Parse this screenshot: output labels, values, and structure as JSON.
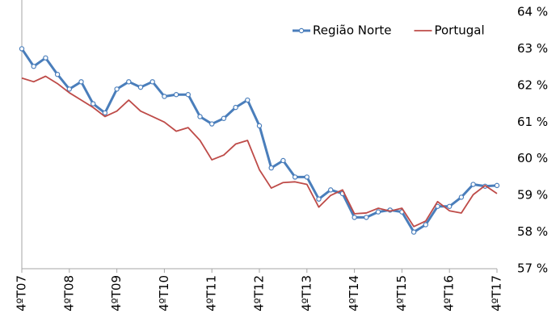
{
  "chart_data": {
    "type": "line",
    "categories": [
      "4ºT07",
      null,
      null,
      null,
      "4ºT08",
      null,
      null,
      null,
      "4ºT09",
      null,
      null,
      null,
      "4ºT10",
      null,
      null,
      null,
      "4ºT11",
      null,
      null,
      null,
      "4ºT12",
      null,
      null,
      null,
      "4ºT13",
      null,
      null,
      null,
      "4ºT14",
      null,
      null,
      null,
      "4ºT15",
      null,
      null,
      null,
      "4ºT16",
      null,
      null,
      null,
      "4ºT17"
    ],
    "series": [
      {
        "name": "Região Norte",
        "color": "#4a7ebb",
        "marker": "circle",
        "values": [
          63.0,
          62.52,
          62.75,
          62.3,
          61.9,
          62.1,
          61.5,
          61.25,
          61.9,
          62.1,
          61.95,
          62.1,
          61.7,
          61.75,
          61.75,
          61.15,
          60.95,
          61.1,
          61.4,
          61.6,
          60.9,
          59.75,
          59.95,
          59.5,
          59.5,
          58.9,
          59.15,
          59.05,
          58.4,
          58.4,
          58.55,
          58.6,
          58.55,
          58.0,
          58.2,
          58.7,
          58.7,
          58.95,
          59.3,
          59.25,
          59.27
        ]
      },
      {
        "name": "Portugal",
        "color": "#be4b48",
        "marker": "none",
        "values": [
          62.2,
          62.1,
          62.25,
          62.05,
          61.8,
          61.6,
          61.4,
          61.15,
          61.3,
          61.6,
          61.3,
          61.15,
          61.0,
          60.75,
          60.85,
          60.5,
          59.97,
          60.1,
          60.4,
          60.5,
          59.7,
          59.2,
          59.35,
          59.37,
          59.3,
          58.68,
          59.0,
          59.15,
          58.5,
          58.52,
          58.65,
          58.57,
          58.65,
          58.15,
          58.3,
          58.83,
          58.58,
          58.52,
          59.02,
          59.27,
          59.05
        ]
      }
    ],
    "ylim": [
      57,
      64
    ],
    "yticks": [
      {
        "value": 57,
        "label": "57 %"
      },
      {
        "value": 58,
        "label": "58 %"
      },
      {
        "value": 59,
        "label": "59 %"
      },
      {
        "value": 60,
        "label": "60 %"
      },
      {
        "value": 61,
        "label": "61 %"
      },
      {
        "value": 62,
        "label": "62 %"
      },
      {
        "value": 63,
        "label": "63 %"
      },
      {
        "value": 64,
        "label": "64 %"
      }
    ],
    "y_axis_side": "right",
    "legend": "top-right",
    "grid": false
  }
}
